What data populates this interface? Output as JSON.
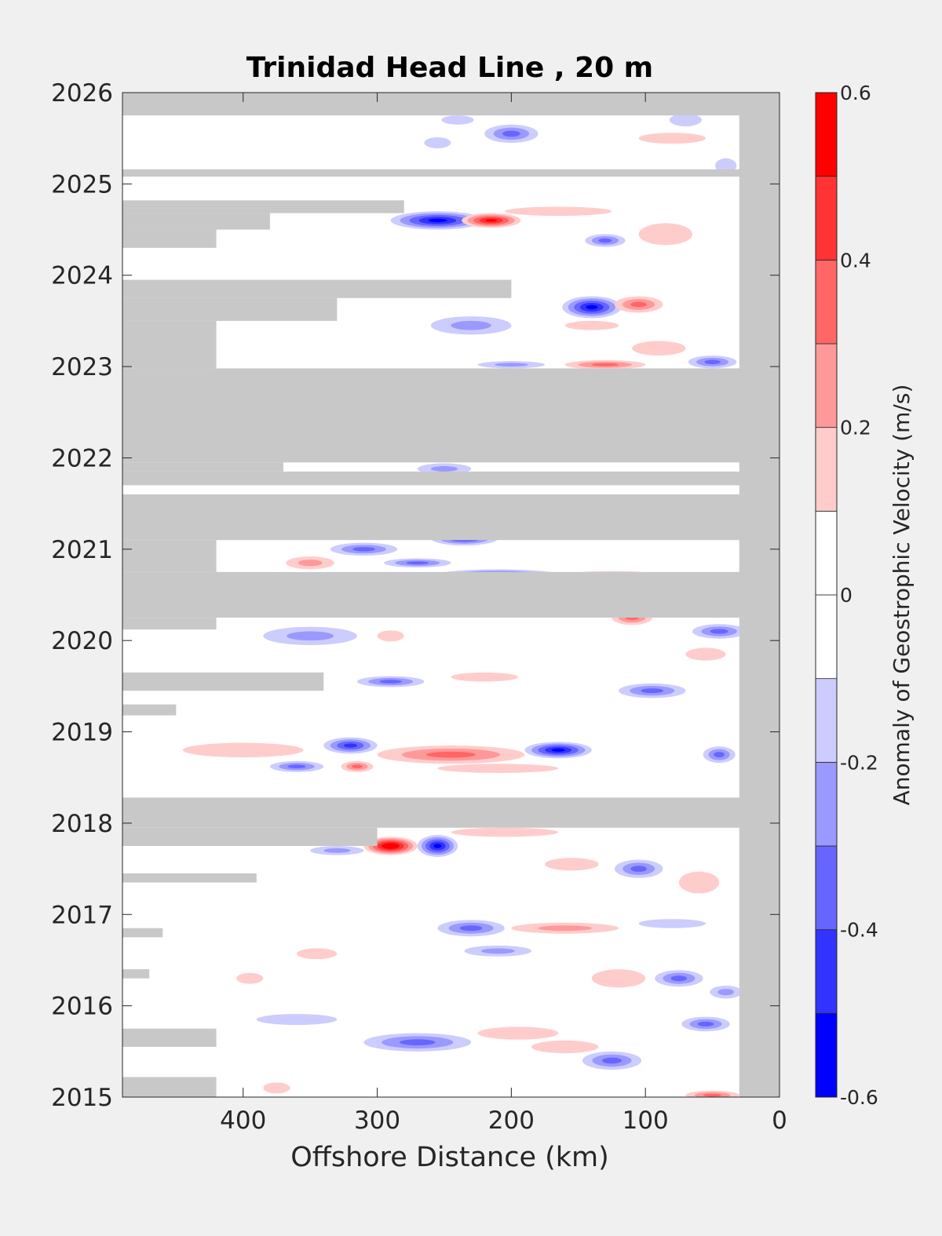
{
  "chart_data": {
    "type": "heatmap",
    "title": "Trinidad Head Line , 20 m",
    "xlabel": "Offshore Distance (km)",
    "ylabel": "",
    "xlim": [
      490,
      0
    ],
    "ylim": [
      2015,
      2026
    ],
    "x_direction": "reversed",
    "x_ticks": [
      400,
      300,
      200,
      100,
      0
    ],
    "x_tick_labels": [
      "400",
      "300",
      "200",
      "100",
      "0"
    ],
    "y_ticks": [
      2015,
      2016,
      2017,
      2018,
      2019,
      2020,
      2021,
      2022,
      2023,
      2024,
      2025,
      2026
    ],
    "y_tick_labels": [
      "2015",
      "2016",
      "2017",
      "2018",
      "2019",
      "2020",
      "2021",
      "2022",
      "2023",
      "2024",
      "2025",
      "2026"
    ],
    "missing_color": "#c8c8c8",
    "colorbar": {
      "label": "Anomaly of Geostrophic Velocity (m/s)",
      "limits": [
        -0.6,
        0.6
      ],
      "ticks": [
        -0.6,
        -0.4,
        -0.2,
        0,
        0.2,
        0.4,
        0.6
      ],
      "tick_labels": [
        "-0.6",
        "-0.4",
        "-0.2",
        "0",
        "0.2",
        "0.4",
        "0.6"
      ],
      "levels": [
        -0.6,
        -0.5,
        -0.4,
        -0.3,
        -0.2,
        -0.1,
        0,
        0.1,
        0.2,
        0.3,
        0.4,
        0.5,
        0.6
      ],
      "colors": [
        "#0000ff",
        "#3333ff",
        "#6666ff",
        "#9999ff",
        "#ccccff",
        "#ffffff",
        "#ffffff",
        "#ffcccc",
        "#ff9999",
        "#ff6666",
        "#ff3333",
        "#ff0000"
      ]
    },
    "missing_bands": [
      {
        "t0": 2025.75,
        "t1": 2026.0,
        "x_from": 490,
        "x_to": 0
      },
      {
        "t0": 2025.08,
        "t1": 2025.16,
        "x_from": 490,
        "x_to": 0
      },
      {
        "t0": 2024.68,
        "t1": 2024.82,
        "x_from": 490,
        "x_to": 280
      },
      {
        "t0": 2024.5,
        "t1": 2024.68,
        "x_from": 490,
        "x_to": 380
      },
      {
        "t0": 2024.3,
        "t1": 2024.5,
        "x_from": 490,
        "x_to": 420
      },
      {
        "t0": 2023.75,
        "t1": 2023.95,
        "x_from": 490,
        "x_to": 200
      },
      {
        "t0": 2023.5,
        "t1": 2023.75,
        "x_from": 490,
        "x_to": 330
      },
      {
        "t0": 2022.98,
        "t1": 2023.5,
        "x_from": 490,
        "x_to": 420
      },
      {
        "t0": 2021.95,
        "t1": 2022.98,
        "x_from": 490,
        "x_to": 0
      },
      {
        "t0": 2021.85,
        "t1": 2021.95,
        "x_from": 490,
        "x_to": 370
      },
      {
        "t0": 2021.7,
        "t1": 2021.85,
        "x_from": 490,
        "x_to": 0
      },
      {
        "t0": 2021.1,
        "t1": 2021.6,
        "x_from": 490,
        "x_to": 0
      },
      {
        "t0": 2020.75,
        "t1": 2021.1,
        "x_from": 490,
        "x_to": 420
      },
      {
        "t0": 2020.25,
        "t1": 2020.75,
        "x_from": 490,
        "x_to": 0
      },
      {
        "t0": 2020.12,
        "t1": 2020.25,
        "x_from": 490,
        "x_to": 420
      },
      {
        "t0": 2019.45,
        "t1": 2019.65,
        "x_from": 490,
        "x_to": 340
      },
      {
        "t0": 2019.18,
        "t1": 2019.3,
        "x_from": 490,
        "x_to": 450
      },
      {
        "t0": 2017.95,
        "t1": 2018.28,
        "x_from": 490,
        "x_to": 0
      },
      {
        "t0": 2017.75,
        "t1": 2017.95,
        "x_from": 490,
        "x_to": 300
      },
      {
        "t0": 2017.35,
        "t1": 2017.45,
        "x_from": 490,
        "x_to": 390
      },
      {
        "t0": 2016.75,
        "t1": 2016.85,
        "x_from": 490,
        "x_to": 460
      },
      {
        "t0": 2016.3,
        "t1": 2016.4,
        "x_from": 490,
        "x_to": 470
      },
      {
        "t0": 2015.55,
        "t1": 2015.75,
        "x_from": 490,
        "x_to": 420
      },
      {
        "t0": 2015.0,
        "t1": 2015.22,
        "x_from": 490,
        "x_to": 420
      },
      {
        "t0": 2015.0,
        "t1": 2026.0,
        "x_from": 30,
        "x_to": 0
      }
    ],
    "anomalies": [
      {
        "x": 200,
        "t": 2025.55,
        "rx": 20,
        "rt": 0.1,
        "v": -0.35
      },
      {
        "x": 240,
        "t": 2025.7,
        "rx": 12,
        "rt": 0.05,
        "v": -0.15
      },
      {
        "x": 70,
        "t": 2025.7,
        "rx": 12,
        "rt": 0.07,
        "v": -0.15
      },
      {
        "x": 80,
        "t": 2025.5,
        "rx": 25,
        "rt": 0.06,
        "v": 0.15
      },
      {
        "x": 255,
        "t": 2025.45,
        "rx": 10,
        "rt": 0.06,
        "v": -0.15
      },
      {
        "x": 40,
        "t": 2025.2,
        "rx": 8,
        "rt": 0.08,
        "v": -0.15
      },
      {
        "x": 255,
        "t": 2024.6,
        "rx": 35,
        "rt": 0.1,
        "v": -0.5
      },
      {
        "x": 215,
        "t": 2024.6,
        "rx": 22,
        "rt": 0.08,
        "v": 0.45
      },
      {
        "x": 165,
        "t": 2024.7,
        "rx": 40,
        "rt": 0.05,
        "v": 0.15
      },
      {
        "x": 130,
        "t": 2024.38,
        "rx": 15,
        "rt": 0.07,
        "v": -0.35
      },
      {
        "x": 85,
        "t": 2024.45,
        "rx": 20,
        "rt": 0.12,
        "v": 0.15
      },
      {
        "x": 140,
        "t": 2023.65,
        "rx": 22,
        "rt": 0.12,
        "v": -0.5
      },
      {
        "x": 105,
        "t": 2023.68,
        "rx": 18,
        "rt": 0.09,
        "v": 0.3
      },
      {
        "x": 230,
        "t": 2023.45,
        "rx": 30,
        "rt": 0.1,
        "v": -0.2
      },
      {
        "x": 140,
        "t": 2023.45,
        "rx": 20,
        "rt": 0.05,
        "v": 0.15
      },
      {
        "x": 90,
        "t": 2023.2,
        "rx": 20,
        "rt": 0.08,
        "v": 0.15
      },
      {
        "x": 50,
        "t": 2023.05,
        "rx": 18,
        "rt": 0.07,
        "v": -0.3
      },
      {
        "x": 130,
        "t": 2023.02,
        "rx": 30,
        "rt": 0.05,
        "v": 0.3
      },
      {
        "x": 200,
        "t": 2023.02,
        "rx": 25,
        "rt": 0.04,
        "v": -0.2
      },
      {
        "x": 250,
        "t": 2021.88,
        "rx": 20,
        "rt": 0.06,
        "v": -0.2
      },
      {
        "x": 235,
        "t": 2021.12,
        "rx": 25,
        "rt": 0.08,
        "v": -0.4
      },
      {
        "x": 310,
        "t": 2021.0,
        "rx": 25,
        "rt": 0.07,
        "v": -0.3
      },
      {
        "x": 270,
        "t": 2020.85,
        "rx": 25,
        "rt": 0.05,
        "v": -0.3
      },
      {
        "x": 210,
        "t": 2020.7,
        "rx": 50,
        "rt": 0.08,
        "v": -0.5
      },
      {
        "x": 350,
        "t": 2020.85,
        "rx": 18,
        "rt": 0.07,
        "v": 0.2
      },
      {
        "x": 125,
        "t": 2020.7,
        "rx": 40,
        "rt": 0.06,
        "v": 0.25
      },
      {
        "x": 110,
        "t": 2020.25,
        "rx": 15,
        "rt": 0.08,
        "v": 0.35
      },
      {
        "x": 45,
        "t": 2020.1,
        "rx": 20,
        "rt": 0.08,
        "v": -0.25
      },
      {
        "x": 350,
        "t": 2020.05,
        "rx": 35,
        "rt": 0.1,
        "v": -0.2
      },
      {
        "x": 290,
        "t": 2020.05,
        "rx": 10,
        "rt": 0.06,
        "v": 0.15
      },
      {
        "x": 55,
        "t": 2019.85,
        "rx": 15,
        "rt": 0.07,
        "v": 0.15
      },
      {
        "x": 290,
        "t": 2019.55,
        "rx": 25,
        "rt": 0.06,
        "v": -0.25
      },
      {
        "x": 220,
        "t": 2019.6,
        "rx": 25,
        "rt": 0.05,
        "v": 0.15
      },
      {
        "x": 95,
        "t": 2019.45,
        "rx": 25,
        "rt": 0.08,
        "v": -0.25
      },
      {
        "x": 320,
        "t": 2018.85,
        "rx": 20,
        "rt": 0.09,
        "v": -0.4
      },
      {
        "x": 245,
        "t": 2018.75,
        "rx": 55,
        "rt": 0.1,
        "v": 0.3
      },
      {
        "x": 165,
        "t": 2018.8,
        "rx": 25,
        "rt": 0.09,
        "v": -0.45
      },
      {
        "x": 400,
        "t": 2018.8,
        "rx": 45,
        "rt": 0.08,
        "v": 0.15
      },
      {
        "x": 360,
        "t": 2018.62,
        "rx": 20,
        "rt": 0.06,
        "v": -0.3
      },
      {
        "x": 315,
        "t": 2018.62,
        "rx": 12,
        "rt": 0.06,
        "v": 0.3
      },
      {
        "x": 210,
        "t": 2018.6,
        "rx": 45,
        "rt": 0.05,
        "v": 0.15
      },
      {
        "x": 45,
        "t": 2018.75,
        "rx": 12,
        "rt": 0.09,
        "v": -0.3
      },
      {
        "x": 290,
        "t": 2017.75,
        "rx": 20,
        "rt": 0.1,
        "v": 0.55
      },
      {
        "x": 255,
        "t": 2017.75,
        "rx": 15,
        "rt": 0.12,
        "v": -0.45
      },
      {
        "x": 330,
        "t": 2017.7,
        "rx": 20,
        "rt": 0.05,
        "v": -0.2
      },
      {
        "x": 205,
        "t": 2017.9,
        "rx": 40,
        "rt": 0.05,
        "v": 0.15
      },
      {
        "x": 105,
        "t": 2017.5,
        "rx": 18,
        "rt": 0.1,
        "v": -0.3
      },
      {
        "x": 155,
        "t": 2017.55,
        "rx": 20,
        "rt": 0.07,
        "v": 0.15
      },
      {
        "x": 60,
        "t": 2017.35,
        "rx": 15,
        "rt": 0.12,
        "v": 0.15
      },
      {
        "x": 230,
        "t": 2016.85,
        "rx": 25,
        "rt": 0.09,
        "v": -0.3
      },
      {
        "x": 160,
        "t": 2016.85,
        "rx": 40,
        "rt": 0.06,
        "v": 0.2
      },
      {
        "x": 80,
        "t": 2016.9,
        "rx": 25,
        "rt": 0.05,
        "v": -0.15
      },
      {
        "x": 210,
        "t": 2016.6,
        "rx": 25,
        "rt": 0.06,
        "v": -0.2
      },
      {
        "x": 345,
        "t": 2016.57,
        "rx": 15,
        "rt": 0.06,
        "v": 0.15
      },
      {
        "x": 120,
        "t": 2016.3,
        "rx": 20,
        "rt": 0.1,
        "v": 0.15
      },
      {
        "x": 75,
        "t": 2016.3,
        "rx": 18,
        "rt": 0.09,
        "v": -0.3
      },
      {
        "x": 40,
        "t": 2016.15,
        "rx": 12,
        "rt": 0.07,
        "v": -0.2
      },
      {
        "x": 395,
        "t": 2016.3,
        "rx": 10,
        "rt": 0.06,
        "v": 0.15
      },
      {
        "x": 270,
        "t": 2015.6,
        "rx": 40,
        "rt": 0.1,
        "v": -0.25
      },
      {
        "x": 195,
        "t": 2015.7,
        "rx": 30,
        "rt": 0.07,
        "v": 0.15
      },
      {
        "x": 160,
        "t": 2015.55,
        "rx": 25,
        "rt": 0.07,
        "v": 0.15
      },
      {
        "x": 125,
        "t": 2015.4,
        "rx": 22,
        "rt": 0.1,
        "v": -0.3
      },
      {
        "x": 55,
        "t": 2015.8,
        "rx": 18,
        "rt": 0.08,
        "v": -0.25
      },
      {
        "x": 360,
        "t": 2015.85,
        "rx": 30,
        "rt": 0.06,
        "v": -0.15
      },
      {
        "x": 50,
        "t": 2015.02,
        "rx": 20,
        "rt": 0.05,
        "v": 0.25
      },
      {
        "x": 375,
        "t": 2015.1,
        "rx": 10,
        "rt": 0.06,
        "v": 0.15
      }
    ]
  }
}
